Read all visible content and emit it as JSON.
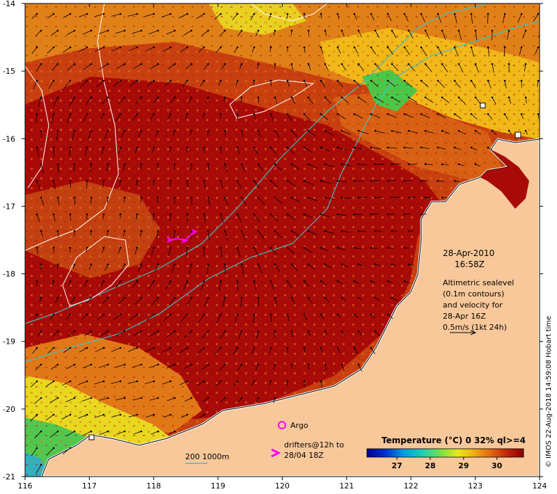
{
  "map": {
    "date_title": "28-Apr-2010",
    "time_title": "16:58Z",
    "sealevel_note": [
      "Altimetric sealevel",
      "(0.1m contours)",
      "and velocity for",
      "28-Apr 16Z",
      "0.5m/s (1kt 24h)"
    ],
    "argo_label": "Argo",
    "drifters_label_1": "drifters@12h to",
    "drifters_label_2": "28/04 18Z",
    "bathy_label": "200  1000m",
    "colorbar_title": "Temperature (°C) 0 32% ql>=4",
    "colorbar_ticks": [
      "27",
      "28",
      "29",
      "30"
    ],
    "credit": "© IMOS 22-Aug-2018 14:59:08 Hobart time",
    "x_ticks": [
      "116",
      "117",
      "118",
      "119",
      "120",
      "121",
      "122",
      "123",
      "124"
    ],
    "y_ticks": [
      "-14",
      "-15",
      "-16",
      "-17",
      "-18",
      "-19",
      "-20",
      "-21"
    ],
    "lon_range": [
      116,
      124
    ],
    "lat_range": [
      -21,
      -14
    ],
    "colors": {
      "land": "#f8c89a",
      "warm": "#a80a08",
      "mid": "#d8501a",
      "cool": "#f0a018",
      "yellow": "#e8e020",
      "green": "#40c840",
      "bathy": "#40c0c0",
      "drifter": "#ff00ff"
    }
  }
}
